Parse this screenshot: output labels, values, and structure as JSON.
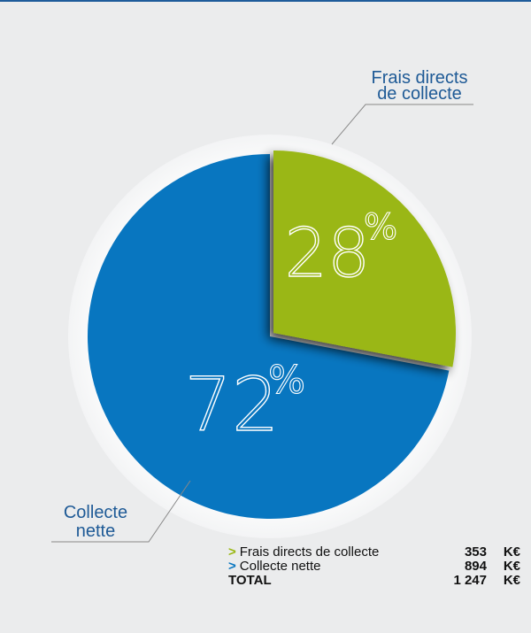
{
  "chart_data": {
    "type": "pie",
    "slices": [
      {
        "label": "Frais directs de collecte",
        "percent": 28,
        "value": 353,
        "color": "#9ab712"
      },
      {
        "label": "Collecte nette",
        "percent": 72,
        "value": 894,
        "color": "#0876c0"
      }
    ],
    "callouts": [
      {
        "line1": "Frais directs",
        "line2": "de collecte"
      },
      {
        "line1": "Collecte",
        "line2": "nette"
      }
    ],
    "percent_labels": [
      {
        "number": "28",
        "sign": "%"
      },
      {
        "number": "72",
        "sign": "%"
      }
    ]
  },
  "legend": {
    "arrow": ">",
    "unit": "K€",
    "rows": [
      {
        "label": "Frais directs de collecte",
        "value": "353",
        "arrow_color": "#9ab712"
      },
      {
        "label": "Collecte nette",
        "value": "894",
        "arrow_color": "#0876c0"
      }
    ],
    "total": {
      "label": "TOTAL",
      "value": "1 247"
    }
  },
  "colors": {
    "background": "#ebeced",
    "accent_rule": "#1f5c9b",
    "callout_text": "#1e5a96",
    "leader_line": "#888888"
  }
}
